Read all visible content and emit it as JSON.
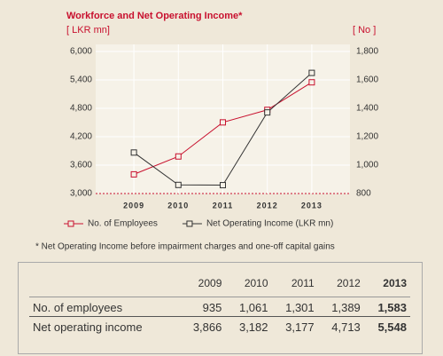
{
  "chart_data": {
    "type": "line",
    "title": "Workforce and Net Operating Income*",
    "y_label": "[ LKR mn]",
    "y2_label": "[ No ]",
    "categories": [
      "2009",
      "2010",
      "2011",
      "2012",
      "2013"
    ],
    "series": [
      {
        "name": "No. of Employees",
        "color": "#c8102e",
        "axis": "y2",
        "values": [
          935,
          1061,
          1301,
          1389,
          1583
        ]
      },
      {
        "name": "Net Operating Income (LKR mn)",
        "color": "#333333",
        "values": [
          3866,
          3182,
          3177,
          4713,
          5548
        ]
      }
    ],
    "ylim": [
      3000,
      6000
    ],
    "yticks": [
      {
        "value": 3000,
        "label": "3,000"
      },
      {
        "value": 3600,
        "label": "3,600"
      },
      {
        "value": 4200,
        "label": "4,200"
      },
      {
        "value": 4800,
        "label": "4,800"
      },
      {
        "value": 5400,
        "label": "5,400"
      },
      {
        "value": 6000,
        "label": "6,000"
      }
    ],
    "y2lim": [
      800,
      1800
    ],
    "y2ticks": [
      800,
      {
        "value": 1000,
        "label": "1,000"
      },
      {
        "value": 1200,
        "label": "1,200"
      },
      {
        "value": 1400,
        "label": "1,400"
      },
      {
        "value": 1600,
        "label": "1,600"
      },
      {
        "value": 1800,
        "label": "1,800"
      }
    ],
    "grid": true,
    "footnote": "* Net Operating Income before impairment charges and one-off capital gains"
  },
  "table": {
    "columns": [
      "2009",
      "2010",
      "2011",
      "2012",
      "2013"
    ],
    "rows": [
      {
        "label": "No. of employees",
        "cells": [
          "935",
          "1,061",
          "1,301",
          "1,389",
          "1,583"
        ]
      },
      {
        "label": "Net operating income",
        "cells": [
          "3,866",
          "3,182",
          "3,177",
          "4,713",
          "5,548"
        ]
      }
    ]
  }
}
